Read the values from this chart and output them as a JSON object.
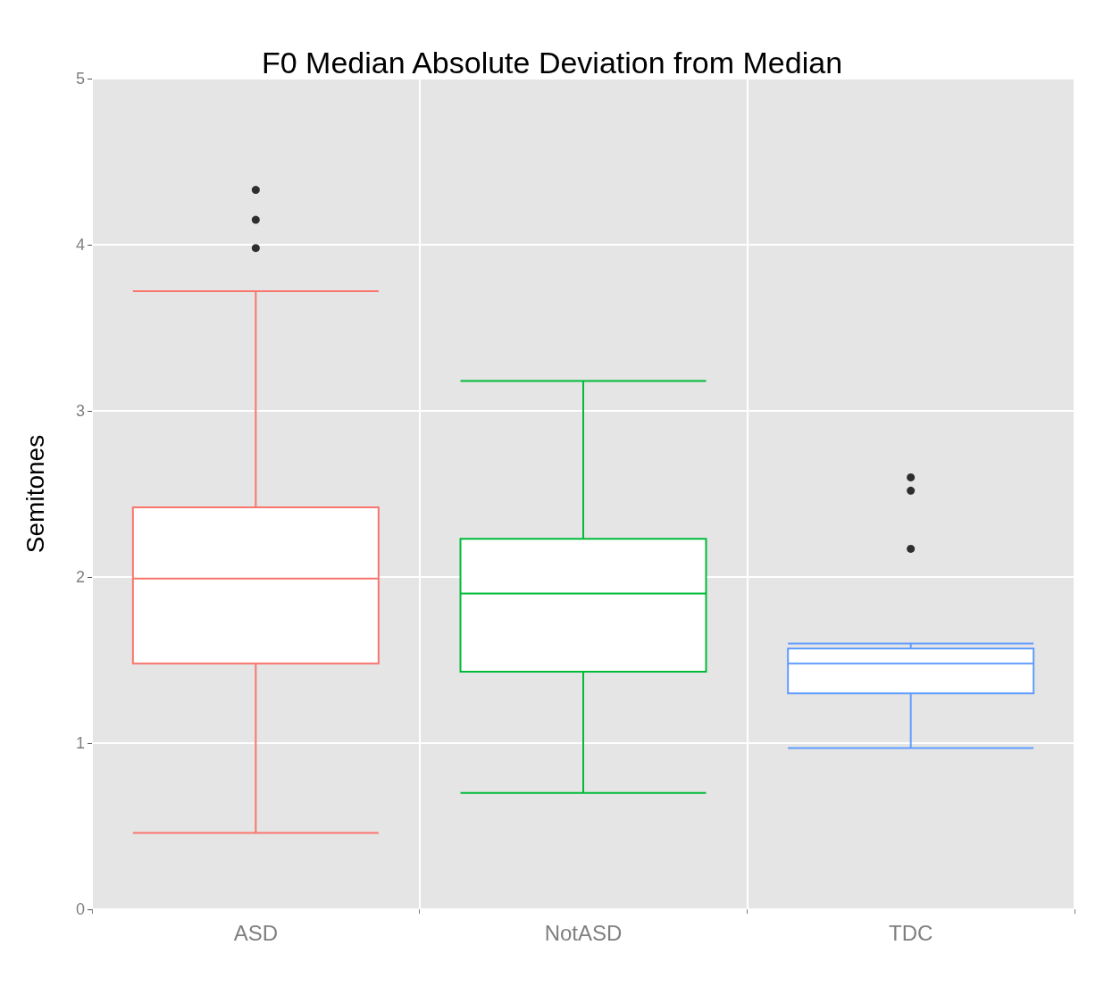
{
  "chart_data": {
    "type": "box",
    "title": "F0 Median Absolute Deviation from Median",
    "ylabel": "Semitones",
    "categories": [
      "ASD",
      "NotASD",
      "TDC"
    ],
    "colors": [
      "#f8766d",
      "#00ba38",
      "#619cff"
    ],
    "boxes": [
      {
        "low": 0.46,
        "q1": 1.48,
        "median": 1.99,
        "q3": 2.42,
        "high": 3.72,
        "outliers": [
          3.98,
          4.15,
          4.33
        ]
      },
      {
        "low": 0.7,
        "q1": 1.43,
        "median": 1.9,
        "q3": 2.23,
        "high": 3.18
      },
      {
        "low": 0.97,
        "q1": 1.3,
        "median": 1.48,
        "q3": 1.57,
        "high": 1.6,
        "outliers": [
          2.17,
          2.52,
          2.6
        ]
      }
    ],
    "ylim": [
      0,
      5
    ],
    "yticks": [
      0,
      1,
      2,
      3,
      4,
      5
    ],
    "grid": true
  }
}
